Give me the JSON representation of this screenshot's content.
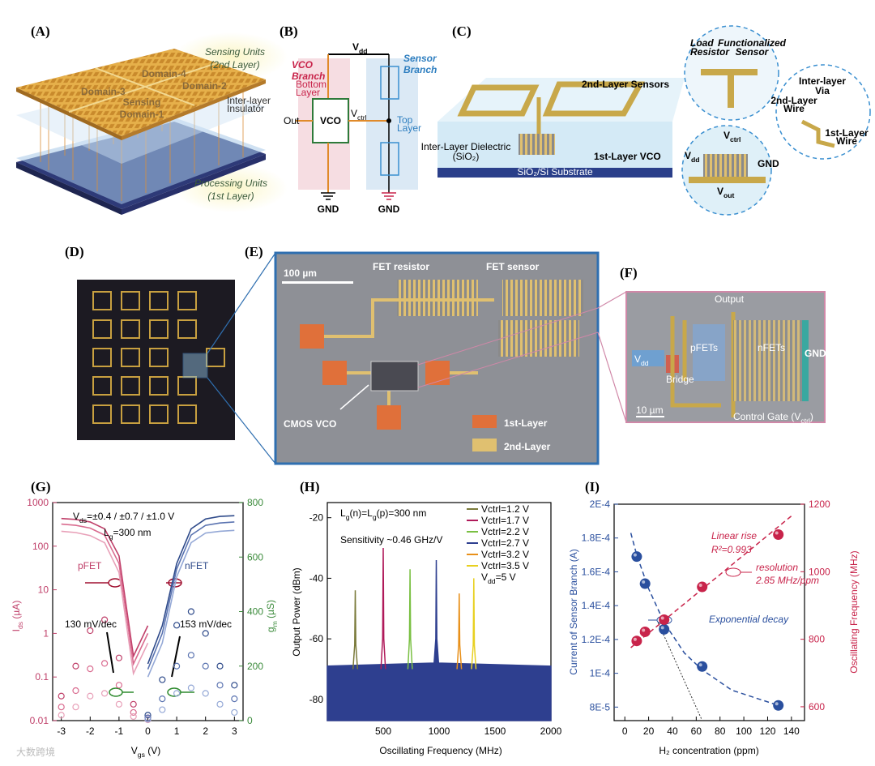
{
  "figure": {
    "panel_labels": [
      "(A)",
      "(B)",
      "(C)",
      "(D)",
      "(E)",
      "(F)",
      "(G)",
      "(H)",
      "(I)"
    ],
    "a": {
      "top_label": [
        "Sensing Units",
        "(2nd Layer)"
      ],
      "domain_4": "Domain-4",
      "domain_3": "Domain-3",
      "domain_2": "Domain-2",
      "domain_1": [
        "Sensing",
        "Domain-1"
      ],
      "insulator": [
        "Inter-layer",
        "Insulator"
      ],
      "bottom_label": [
        "Processing Units",
        "(1st Layer)"
      ]
    },
    "b": {
      "vdd": [
        "V",
        "dd"
      ],
      "vco_branch": [
        "VCO",
        "Branch"
      ],
      "sensor_branch": [
        "Sensor",
        "Branch"
      ],
      "bottom_layer": [
        "Bottom",
        "Layer"
      ],
      "top_layer": [
        "Top",
        "Layer"
      ],
      "vco": "VCO",
      "out": "Out",
      "vctrl": [
        "V",
        "ctrl"
      ],
      "gnd_left": "GND",
      "gnd_right": "GND"
    },
    "c": {
      "sensors": "2nd-Layer Sensors",
      "dielectric": [
        "Inter-Layer Dielectric",
        "(SiO₂)"
      ],
      "vco": "1st-Layer VCO",
      "substrate": "SiO₂/Si Substrate",
      "load_resistor": [
        "Load",
        "Resistor"
      ],
      "func_sensor": [
        "Functionalized",
        "Sensor"
      ],
      "via": [
        "Inter-layer",
        "Via"
      ],
      "wire2": [
        "2nd-Layer",
        "Wire"
      ],
      "wire1": [
        "1st-Layer",
        "Wire"
      ],
      "vctrl": [
        "V",
        "ctrl"
      ],
      "vdd": [
        "V",
        "dd"
      ],
      "gnd": "GND",
      "vout": [
        "V",
        "out"
      ]
    },
    "e": {
      "scale": "100 µm",
      "fet_resistor": "FET resistor",
      "fet_sensor": "FET sensor",
      "cmos_vco": "CMOS VCO",
      "legend_1": "1st-Layer",
      "legend_2": "2nd-Layer"
    },
    "f": {
      "output": "Output",
      "vdd": [
        "V",
        "dd"
      ],
      "pfets": "pFETs",
      "nfets": "nFETs",
      "gnd": "GND",
      "bridge": "Bridge",
      "scale": "10 µm",
      "control_gate": [
        "Control Gate (",
        "V",
        "ctrl",
        ")"
      ]
    },
    "watermark": "大数跨境"
  },
  "chart_data": [
    {
      "type": "line",
      "log_y": true,
      "x": [
        -3,
        -2.5,
        -2,
        -1.5,
        -1,
        -0.5,
        0,
        0.5,
        1,
        1.5,
        2,
        2.5,
        3
      ],
      "xlim": [
        -3.3,
        3.3
      ],
      "xticks": [
        -3,
        -2,
        -1,
        0,
        1,
        2,
        3
      ],
      "ylim": [
        0.01,
        1000
      ],
      "yticks": [
        0.01,
        0.1,
        1,
        10,
        100,
        1000
      ],
      "y2lim": [
        0,
        800
      ],
      "y2ticks": [
        0,
        200,
        400,
        600,
        800
      ],
      "y_color": "#c0406a",
      "y2_color": "#3a8a3a",
      "xlabel": [
        "V",
        "gs",
        " (V)"
      ],
      "ylabel": [
        "I",
        "ds",
        " (µA)"
      ],
      "y2label": [
        "g",
        "m",
        " (µS)"
      ],
      "annotations": {
        "vds": [
          "V",
          "ds",
          "=±0.4 / ±0.7 / ±1.0 V"
        ],
        "lg": [
          "L",
          "g",
          "=300 nm"
        ],
        "pfet": "pFET",
        "nfet": "nFET",
        "p_ss": "130 mV/dec",
        "n_ss": "153 mV/dec"
      },
      "series": [
        {
          "color": "#c0406a",
          "values": [
            430,
            410,
            360,
            250,
            60,
            0.3,
            1.5,
            null,
            null,
            null,
            null,
            null,
            null
          ]
        },
        {
          "color": "#d96b8f",
          "values": [
            320,
            300,
            260,
            180,
            40,
            0.2,
            1.0,
            null,
            null,
            null,
            null,
            null,
            null
          ]
        },
        {
          "color": "#e8a0b8",
          "values": [
            220,
            205,
            175,
            120,
            25,
            0.12,
            0.6,
            null,
            null,
            null,
            null,
            null,
            null
          ]
        },
        {
          "color": "#2e4a8a",
          "values": [
            null,
            null,
            null,
            null,
            null,
            null,
            0.2,
            1.5,
            40,
            250,
            420,
            480,
            500
          ]
        },
        {
          "color": "#5a73b0",
          "values": [
            null,
            null,
            null,
            null,
            null,
            null,
            0.15,
            1.0,
            30,
            180,
            300,
            340,
            360
          ]
        },
        {
          "color": "#94a8d6",
          "values": [
            null,
            null,
            null,
            null,
            null,
            null,
            0.1,
            0.6,
            20,
            120,
            200,
            220,
            230
          ]
        },
        {
          "color": "#c0406a",
          "marker": "circle",
          "axis": "y2",
          "values": [
            90,
            200,
            330,
            370,
            230,
            60,
            10,
            null,
            null,
            null,
            null,
            null,
            null
          ]
        },
        {
          "color": "#d96b8f",
          "marker": "circle",
          "axis": "y2",
          "values": [
            50,
            110,
            190,
            210,
            130,
            30,
            5,
            null,
            null,
            null,
            null,
            null,
            null
          ]
        },
        {
          "color": "#e8a0b8",
          "marker": "circle",
          "axis": "y2",
          "values": [
            20,
            50,
            90,
            100,
            60,
            15,
            3,
            null,
            null,
            null,
            null,
            null,
            null
          ]
        },
        {
          "color": "#2e4a8a",
          "marker": "circle",
          "axis": "y2",
          "values": [
            null,
            null,
            null,
            null,
            null,
            null,
            20,
            150,
            350,
            400,
            320,
            200,
            130
          ]
        },
        {
          "color": "#5a73b0",
          "marker": "circle",
          "axis": "y2",
          "values": [
            null,
            null,
            null,
            null,
            null,
            null,
            10,
            80,
            200,
            240,
            200,
            130,
            80
          ]
        },
        {
          "color": "#94a8d6",
          "marker": "circle",
          "axis": "y2",
          "values": [
            null,
            null,
            null,
            null,
            null,
            null,
            5,
            40,
            100,
            120,
            100,
            60,
            30
          ]
        }
      ]
    },
    {
      "type": "line",
      "xlim": [
        0,
        2000
      ],
      "xticks": [
        500,
        1000,
        1500,
        2000
      ],
      "ylim": [
        -87,
        -15
      ],
      "yticks": [
        -20,
        -40,
        -60,
        -80
      ],
      "xlabel": "Oscillating Frequency (MHz)",
      "ylabel": "Output Power (dBm)",
      "legend": "upper right",
      "legend_note": [
        "V",
        "dd",
        "=5 V"
      ],
      "annotations": {
        "lg": [
          "L",
          "g",
          "(n)=",
          "L",
          "g",
          "(p)=300 nm"
        ],
        "sensitivity": "Sensitivity ~0.46 GHz/V"
      },
      "series": [
        {
          "name": "Vctrl=1.2 V",
          "color": "#7a7a3a",
          "x": [
            230,
            245,
            250,
            255,
            270
          ],
          "values": [
            -70,
            -62,
            -44,
            -62,
            -70
          ]
        },
        {
          "name": "Vctrl=1.7 V",
          "color": "#b01a5a",
          "x": [
            480,
            495,
            500,
            505,
            520
          ],
          "values": [
            -70,
            -60,
            -30,
            -60,
            -70
          ]
        },
        {
          "name": "Vctrl=2.2 V",
          "color": "#7ac043",
          "x": [
            720,
            735,
            740,
            745,
            760
          ],
          "values": [
            -70,
            -60,
            -37,
            -60,
            -70
          ]
        },
        {
          "name": "Vctrl=2.7 V",
          "color": "#2e3f8f",
          "fill": true,
          "x": [
            0,
            955,
            970,
            975,
            980,
            995,
            2000
          ],
          "values": [
            -69,
            -68,
            -60,
            -34,
            -60,
            -68,
            -69
          ]
        },
        {
          "name": "Vctrl=3.2 V",
          "color": "#e8901a",
          "x": [
            1160,
            1175,
            1180,
            1185,
            1200
          ],
          "values": [
            -70,
            -62,
            -45,
            -62,
            -70
          ]
        },
        {
          "name": "Vctrl=3.5 V",
          "color": "#e8d020",
          "x": [
            1290,
            1305,
            1310,
            1315,
            1330
          ],
          "values": [
            -70,
            -62,
            -40,
            -62,
            -70
          ]
        }
      ]
    },
    {
      "type": "scatter",
      "x": [
        10,
        17,
        33,
        65,
        129
      ],
      "xlim": [
        -9,
        151
      ],
      "xticks": [
        0,
        20,
        40,
        60,
        80,
        100,
        120,
        140
      ],
      "ylim": [
        7.2e-05,
        0.0002
      ],
      "yticks": [
        {
          "value": 8e-05,
          "label": "8E-5"
        },
        {
          "value": 0.0001,
          "label": "1E-4"
        },
        {
          "value": 0.00012,
          "label": "1.2E-4"
        },
        {
          "value": 0.00014,
          "label": "1.4E-4"
        },
        {
          "value": 0.00016,
          "label": "1.6E-4"
        },
        {
          "value": 0.00018,
          "label": "1.8E-4"
        },
        {
          "value": 0.0002,
          "label": "2E-4"
        }
      ],
      "y2lim": [
        559,
        1200
      ],
      "y2ticks": [
        600,
        800,
        1000,
        1200
      ],
      "y_color": "#2a4f9e",
      "y2_color": "#c8234a",
      "xlabel": "H₂ concentration (ppm)",
      "ylabel": "Current of Sensor Branch (A)",
      "y2label": "Oscillating Frequency (MHz)",
      "annotations": {
        "linear": "Linear rise",
        "r2": "R²=0.993",
        "resolution": "resolution",
        "res_value": "2.85 MHz/ppm",
        "exp": "Exponential decay"
      },
      "series": [
        {
          "color": "#2a4f9e",
          "values": [
            0.000169,
            0.000153,
            0.000126,
            0.000104,
            8.1e-05
          ]
        },
        {
          "color": "#c8234a",
          "axis": "y2",
          "values": [
            795,
            822,
            858,
            955,
            1110
          ]
        }
      ],
      "fits": [
        {
          "color": "#2a4f9e",
          "x": [
            5,
            10,
            20,
            33,
            50,
            65,
            90,
            129
          ],
          "values": [
            0.000183,
            0.00017,
            0.00015,
            0.00013,
            0.000112,
            0.000102,
            9e-05,
            8.1e-05
          ]
        },
        {
          "color": "#c8234a",
          "axis": "y2",
          "x": [
            5,
            140
          ],
          "values": [
            775,
            1165
          ]
        },
        {
          "color": "#333333",
          "x": [
            28,
            65
          ],
          "values": [
            0.00013,
            7.2e-05
          ]
        }
      ]
    }
  ]
}
